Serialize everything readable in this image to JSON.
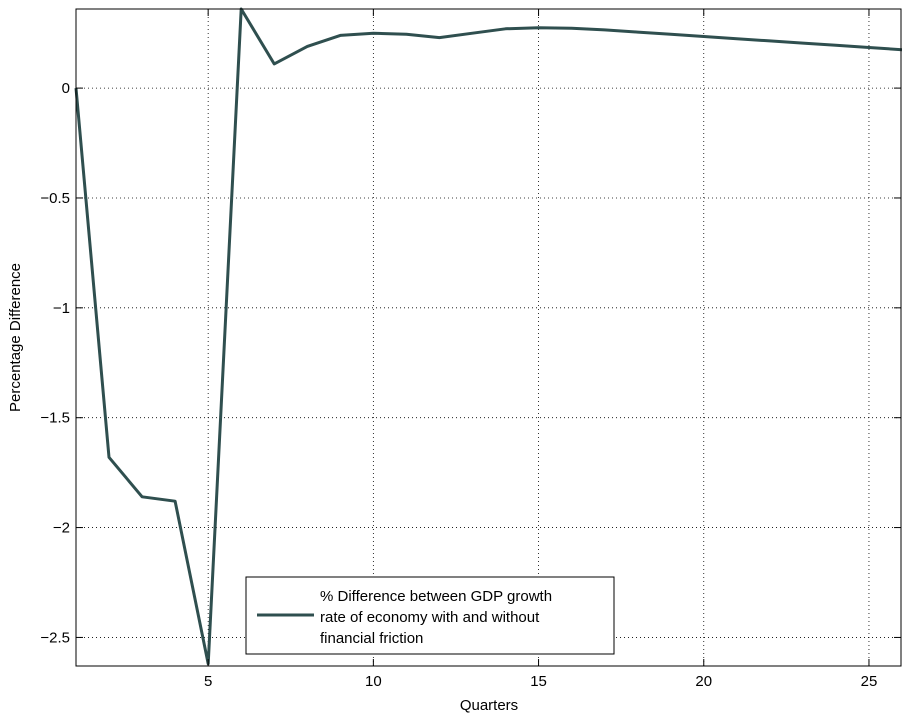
{
  "chart_data": {
    "type": "line",
    "title": "",
    "xlabel": "Quarters",
    "ylabel": "Percentage Difference",
    "xlim": [
      1,
      26
    ],
    "ylim": [
      -2.63,
      0.36
    ],
    "xticks": [
      5,
      10,
      15,
      20,
      25
    ],
    "yticks": [
      0,
      -0.5,
      -1,
      -1.5,
      -2,
      -2.5
    ],
    "xtick_labels": [
      "5",
      "10",
      "15",
      "20",
      "25"
    ],
    "ytick_labels": [
      "0",
      "−0.5",
      "−1",
      "−1.5",
      "−2",
      "−2.5"
    ],
    "grid": true,
    "legend_position": "bottom-center",
    "series": [
      {
        "name": "% Difference between GDP growth rate of economy with and without financial friction",
        "legend_lines": [
          "% Difference between GDP growth",
          "rate of economy with and without",
          "financial friction"
        ],
        "color": "#2f4f4f",
        "x": [
          1,
          2,
          3,
          4,
          5,
          6,
          7,
          8,
          9,
          10,
          11,
          12,
          13,
          14,
          15,
          16,
          17,
          18,
          19,
          20,
          21,
          22,
          23,
          24,
          25,
          26
        ],
        "y": [
          0,
          -1.68,
          -1.86,
          -1.88,
          -2.62,
          0.36,
          0.11,
          0.19,
          0.24,
          0.25,
          0.245,
          0.23,
          0.25,
          0.27,
          0.275,
          0.272,
          0.265,
          0.255,
          0.245,
          0.235,
          0.225,
          0.215,
          0.205,
          0.195,
          0.185,
          0.175
        ]
      }
    ]
  }
}
